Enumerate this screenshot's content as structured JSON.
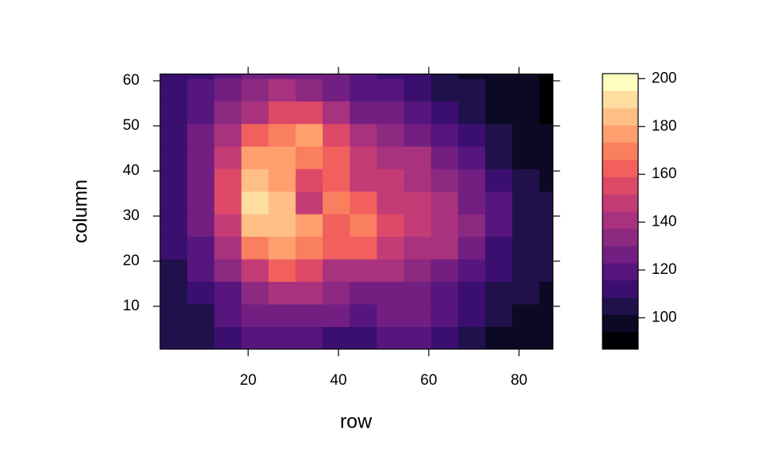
{
  "chart_data": {
    "type": "heatmap",
    "x_label": "row",
    "y_label": "column",
    "xbins": [
      0.5,
      6.5,
      12.5,
      18.5,
      24.5,
      30.5,
      36.5,
      42.5,
      48.5,
      54.5,
      60.5,
      66.5,
      72.5,
      78.5,
      84.5,
      87.5
    ],
    "ybins": [
      0.5,
      5.5,
      10.5,
      15.5,
      20.5,
      25.5,
      30.5,
      35.5,
      40.5,
      45.5,
      50.5,
      55.5,
      60.5,
      61.5
    ],
    "values": [
      [
        102,
        106,
        110,
        116,
        118,
        118,
        114,
        114,
        116,
        116,
        112,
        108,
        100,
        97,
        96
      ],
      [
        104,
        108,
        116,
        124,
        128,
        128,
        124,
        122,
        124,
        124,
        118,
        112,
        104,
        100,
        98
      ],
      [
        106,
        112,
        122,
        134,
        140,
        138,
        132,
        128,
        130,
        128,
        122,
        114,
        106,
        102,
        100
      ],
      [
        108,
        116,
        132,
        150,
        160,
        152,
        144,
        142,
        140,
        136,
        130,
        120,
        110,
        104,
        102
      ],
      [
        110,
        120,
        140,
        170,
        178,
        170,
        162,
        160,
        150,
        144,
        140,
        130,
        114,
        106,
        104
      ],
      [
        112,
        124,
        150,
        185,
        186,
        175,
        165,
        168,
        152,
        146,
        140,
        132,
        118,
        108,
        104
      ],
      [
        112,
        126,
        156,
        190,
        182,
        150,
        170,
        160,
        150,
        146,
        140,
        130,
        116,
        106,
        102
      ],
      [
        112,
        126,
        156,
        186,
        175,
        155,
        166,
        150,
        148,
        144,
        136,
        126,
        110,
        104,
        100
      ],
      [
        114,
        126,
        150,
        176,
        178,
        172,
        160,
        146,
        144,
        140,
        130,
        118,
        106,
        100,
        98
      ],
      [
        114,
        124,
        140,
        160,
        172,
        176,
        154,
        140,
        136,
        130,
        120,
        110,
        104,
        98,
        96
      ],
      [
        112,
        120,
        132,
        144,
        156,
        158,
        140,
        130,
        126,
        118,
        110,
        106,
        100,
        96,
        94
      ],
      [
        110,
        116,
        124,
        132,
        138,
        136,
        128,
        122,
        118,
        112,
        106,
        102,
        98,
        96,
        94
      ],
      [
        110,
        114,
        120,
        126,
        130,
        130,
        124,
        118,
        114,
        110,
        104,
        100,
        96,
        95,
        94
      ]
    ],
    "xlim": [
      0.5,
      87.5
    ],
    "ylim": [
      0.5,
      61.5
    ],
    "xticks": [
      20,
      40,
      60,
      80
    ],
    "yticks": [
      10,
      20,
      30,
      40,
      50,
      60
    ],
    "levels": [
      86.9,
      94.1,
      101.3,
      108.5,
      115.7,
      122.9,
      130.1,
      137.3,
      144.5,
      151.7,
      158.9,
      166.1,
      173.3,
      180.5,
      187.7,
      194.9,
      202.1
    ],
    "colors": [
      "#000004",
      "#0B0924",
      "#20114B",
      "#3B0F70",
      "#57157E",
      "#721F81",
      "#8C2981",
      "#A8327D",
      "#C43C75",
      "#DE4968",
      "#F1605D",
      "#FA7F5E",
      "#FE9F6D",
      "#FEBF84",
      "#FDDEA0",
      "#FCFDBF"
    ],
    "key_ticks": [
      100,
      120,
      140,
      160,
      180,
      200
    ]
  }
}
